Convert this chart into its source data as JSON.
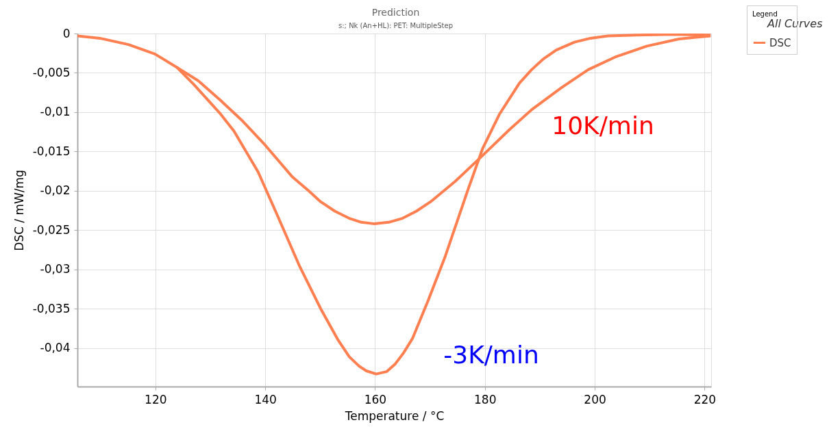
{
  "chart_data": {
    "type": "line",
    "title": "Prediction",
    "subtitle": "s:; Nk (An+HL): PET: MultipleStep",
    "xlabel": "Temperature / °C",
    "ylabel": "DSC / mW/mg",
    "legend_title": "Legend",
    "series": [
      {
        "name": "DSC",
        "color": "#ff7f50",
        "x": [
          105.8,
          109.9,
          115.1,
          119.9,
          123.9,
          127.8,
          131.7,
          135.7,
          140.0,
          144.9,
          147.9,
          150.1,
          152.7,
          155.3,
          157.5,
          159.9,
          162.5,
          165.0,
          167.5,
          170.1,
          174.6,
          179.6,
          184.5,
          188.5,
          193.9,
          198.8,
          203.7,
          209.5,
          215.3,
          221.1
        ],
        "values": [
          -0.0003,
          -0.0006,
          -0.0014,
          -0.0026,
          -0.0043,
          -0.006,
          -0.0084,
          -0.011,
          -0.0142,
          -0.0182,
          -0.02,
          -0.0214,
          -0.0226,
          -0.0235,
          -0.024,
          -0.0242,
          -0.024,
          -0.0235,
          -0.0226,
          -0.0214,
          -0.0188,
          -0.0155,
          -0.0122,
          -0.0097,
          -0.0069,
          -0.0046,
          -0.003,
          -0.0016,
          -0.0007,
          -0.0003
        ]
      },
      {
        "color": "#ff7f50",
        "x": [
          123.9,
          126.9,
          131.7,
          134.3,
          138.7,
          142.2,
          146.2,
          150.1,
          153.2,
          155.3,
          157.1,
          158.4,
          160.2,
          162.1,
          163.7,
          165.2,
          166.8,
          169.7,
          172.8,
          176.9,
          179.6,
          182.7,
          186.3,
          188.5,
          190.7,
          193.0,
          196.3,
          199.2,
          202.4,
          207.7,
          214.5,
          221.1
        ],
        "values": [
          -0.0043,
          -0.0064,
          -0.0101,
          -0.0124,
          -0.0176,
          -0.0231,
          -0.0295,
          -0.035,
          -0.0389,
          -0.0411,
          -0.0423,
          -0.0429,
          -0.0433,
          -0.043,
          -0.042,
          -0.0406,
          -0.0388,
          -0.0339,
          -0.0283,
          -0.0199,
          -0.0146,
          -0.0102,
          -0.0063,
          -0.0046,
          -0.0032,
          -0.0021,
          -0.0011,
          -0.0006,
          -0.0003,
          -0.0002,
          -0.0001,
          -0.0002
        ]
      }
    ],
    "xlim": [
      105.8,
      221.2
    ],
    "xticks": [
      120,
      140,
      160,
      180,
      200,
      220
    ],
    "ylim": [
      -0.0449,
      0
    ],
    "yticks": [
      0,
      {
        "value": -0.005,
        "label": "-0,005"
      },
      {
        "value": -0.01,
        "label": "-0,01"
      },
      {
        "value": -0.015,
        "label": "-0,015"
      },
      {
        "value": -0.02,
        "label": "-0,02"
      },
      {
        "value": -0.025,
        "label": "-0,025"
      },
      {
        "value": -0.03,
        "label": "-0,03"
      },
      {
        "value": -0.035,
        "label": "-0,035"
      },
      {
        "value": -0.04,
        "label": "-0,04"
      }
    ],
    "annotations": [
      "10K/min",
      "-3K/min",
      "All Curves"
    ],
    "grid": true,
    "legend": "top right",
    "marker": "none",
    "line_style": "solid"
  }
}
